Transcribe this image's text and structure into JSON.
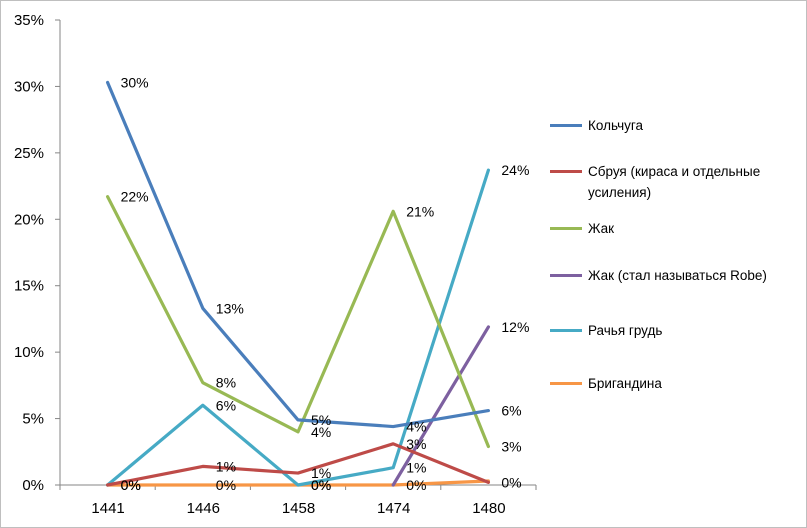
{
  "chart_data": {
    "type": "line",
    "title": "",
    "xlabel": "",
    "ylabel": "",
    "categories": [
      "1441",
      "1446",
      "1458",
      "1474",
      "1480"
    ],
    "ylim": [
      0,
      35
    ],
    "yticks": [
      0,
      5,
      10,
      15,
      20,
      25,
      30,
      35
    ],
    "ytick_labels": [
      "0%",
      "5%",
      "10%",
      "15%",
      "20%",
      "25%",
      "30%",
      "35%"
    ],
    "grid": false,
    "legend_position": "right",
    "series": [
      {
        "name": "Кольчуга",
        "color": "#4a7ebb",
        "values": [
          30.3,
          13.3,
          4.9,
          4.4,
          5.6
        ],
        "labels": [
          "30%",
          "13%",
          "5%",
          "4%",
          "6%"
        ],
        "present": [
          true,
          true,
          true,
          true,
          true
        ]
      },
      {
        "name": "Сбруя (кираса и отдельные усиления)",
        "color": "#be4b48",
        "values": [
          0,
          1.4,
          0.9,
          3.1,
          0.2
        ],
        "labels": [
          "0%",
          "1%",
          "1%",
          "3%",
          "0%"
        ],
        "present": [
          true,
          true,
          true,
          true,
          true
        ]
      },
      {
        "name": "Жак",
        "color": "#98b954",
        "values": [
          21.7,
          7.7,
          4.0,
          20.6,
          2.9
        ],
        "labels": [
          "22%",
          "8%",
          "4%",
          "21%",
          "3%"
        ],
        "present": [
          true,
          true,
          true,
          true,
          true
        ]
      },
      {
        "name": "Жак (стал называться Robe)",
        "color": "#7d60a0",
        "values": [
          null,
          null,
          null,
          0,
          11.9
        ],
        "labels": [
          "",
          "",
          "",
          "",
          "12%"
        ],
        "present": [
          false,
          false,
          false,
          true,
          true
        ]
      },
      {
        "name": "Рачья грудь",
        "color": "#46aac5",
        "values": [
          0,
          6.0,
          0,
          1.3,
          23.7
        ],
        "labels": [
          "",
          "6%",
          "0%",
          "1%",
          "24%"
        ],
        "present": [
          true,
          true,
          true,
          true,
          true
        ]
      },
      {
        "name": "Бригандина",
        "color": "#f79646",
        "values": [
          0,
          0,
          0,
          0,
          0.3
        ],
        "labels": [
          "0%",
          "0%",
          "0%",
          "0%",
          ""
        ],
        "present": [
          true,
          true,
          true,
          true,
          true
        ]
      }
    ]
  }
}
